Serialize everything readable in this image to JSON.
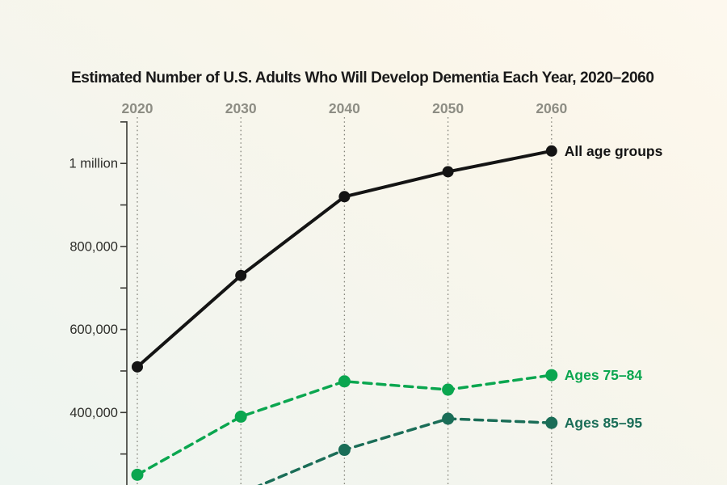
{
  "title": "Estimated Number of U.S. Adults Who Will Develop Dementia Each Year, 2020–2060",
  "chart_data": {
    "type": "line",
    "title": "Estimated Number of U.S. Adults Who Will Develop Dementia Each Year, 2020–2060",
    "x": [
      2020,
      2030,
      2040,
      2050,
      2060
    ],
    "x_tick_labels": [
      "2020",
      "2030",
      "2040",
      "2050",
      "2060"
    ],
    "xlabel": "",
    "ylabel": "",
    "y_axis": {
      "visible_range": [
        225000,
        1120000
      ],
      "tick_interval": 100000,
      "labeled_ticks": [
        {
          "value": 400000,
          "label": "400,000"
        },
        {
          "value": 600000,
          "label": "600,000"
        },
        {
          "value": 800000,
          "label": "800,000"
        },
        {
          "value": 1000000,
          "label": "1 million"
        }
      ]
    },
    "grid": "dotted vertical gridline at each decade",
    "legend_position": "direct labels at right end of each line",
    "series": [
      {
        "name": "All age groups",
        "color": "#141414",
        "line_style": "solid",
        "values": [
          510000,
          730000,
          920000,
          980000,
          1030000
        ]
      },
      {
        "name": "Ages 75–84",
        "color": "#0aa64f",
        "line_style": "dashed",
        "values": [
          250000,
          390000,
          475000,
          455000,
          490000
        ]
      },
      {
        "name": "Ages 85–95",
        "color": "#1a6d57",
        "line_style": "dashed",
        "values": [
          null,
          205000,
          310000,
          385000,
          375000
        ],
        "note": "2020 point and lower part of the 2030 segment fall below the cropped bottom edge of the chart"
      }
    ]
  },
  "colors": {
    "background_top": "#fdf8ee",
    "background_bottom": "#eef5f0",
    "axis": "#3a3a35",
    "gridline": "#85857c",
    "year_labels": "#8d8d84",
    "y_labels": "#2e2e2a",
    "title": "#191919"
  }
}
